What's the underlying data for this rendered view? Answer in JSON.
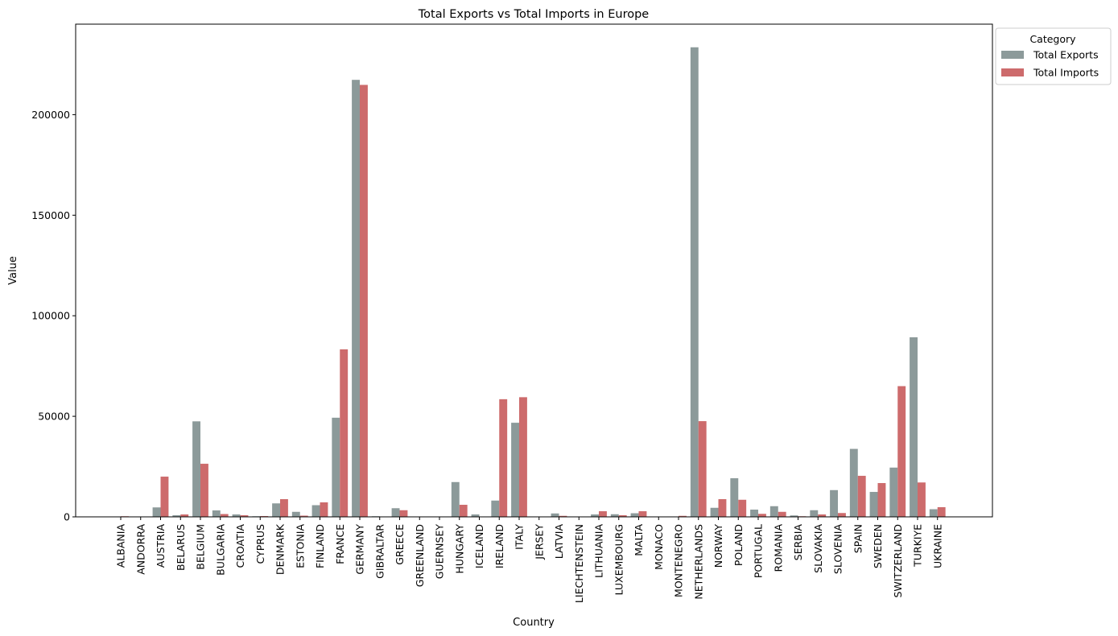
{
  "chart_data": {
    "type": "bar",
    "title": "Total Exports vs Total Imports in Europe",
    "xlabel": "Country",
    "ylabel": "Value",
    "ylim": [
      0,
      245000
    ],
    "yticks": [
      0,
      50000,
      100000,
      150000,
      200000
    ],
    "grid": false,
    "legend": {
      "title": "Category",
      "placement": "upper-right-outside"
    },
    "categories": [
      "ALBANIA",
      "ANDORRA",
      "AUSTRIA",
      "BELARUS",
      "BELGIUM",
      "BULGARIA",
      "CROATIA",
      "CYPRUS",
      "DENMARK",
      "ESTONIA",
      "FINLAND",
      "FRANCE",
      "GERMANY",
      "GIBRALTAR",
      "GREECE",
      "GREENLAND",
      "GUERNSEY",
      "HUNGARY",
      "ICELAND",
      "IRELAND",
      "ITALY",
      "JERSEY",
      "LATVIA",
      "LIECHTENSTEIN",
      "LITHUANIA",
      "LUXEMBOURG",
      "MALTA",
      "MONACO",
      "MONTENEGRO",
      "NETHERLANDS",
      "NORWAY",
      "POLAND",
      "PORTUGAL",
      "ROMANIA",
      "SERBIA",
      "SLOVAKIA",
      "SLOVENIA",
      "SPAIN",
      "SWEDEN",
      "SWITZERLAND",
      "TURKIYE",
      "UKRAINE"
    ],
    "series": [
      {
        "name": "Total Exports",
        "color": "#8c9a9a",
        "values": [
          100,
          0,
          4700,
          800,
          47500,
          3200,
          1200,
          300,
          6700,
          2500,
          5800,
          49300,
          217300,
          300,
          4300,
          0,
          0,
          17300,
          1200,
          8100,
          46800,
          0,
          1700,
          0,
          1200,
          1300,
          1800,
          0,
          0,
          233500,
          4500,
          19200,
          3600,
          5300,
          700,
          3300,
          13300,
          33800,
          12400,
          24500,
          89300,
          3800
        ]
      },
      {
        "name": "Total Imports",
        "color": "#cd6b6c",
        "values": [
          300,
          0,
          20000,
          1200,
          26400,
          1400,
          800,
          400,
          8800,
          600,
          7200,
          83300,
          214800,
          0,
          3300,
          0,
          0,
          6000,
          200,
          58500,
          59500,
          0,
          500,
          0,
          2800,
          800,
          2800,
          0,
          500,
          47600,
          8800,
          8500,
          1500,
          2500,
          300,
          1200,
          1900,
          20400,
          16800,
          65000,
          17100,
          4800
        ]
      }
    ]
  }
}
